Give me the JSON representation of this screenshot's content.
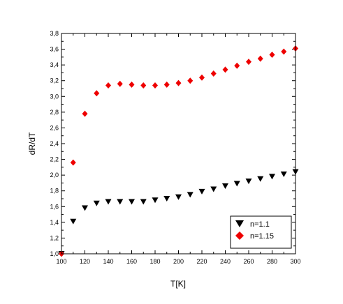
{
  "chart_data": {
    "type": "scatter",
    "xlabel": "T[K]",
    "ylabel": "dR/dT",
    "xlim": [
      100,
      300
    ],
    "ylim": [
      1.0,
      3.8
    ],
    "x_ticks": [
      100,
      120,
      140,
      160,
      180,
      200,
      220,
      240,
      260,
      280,
      300
    ],
    "y_ticks": [
      "1,0",
      "1,2",
      "1,4",
      "1,6",
      "1,8",
      "2,0",
      "2,2",
      "2,4",
      "2,6",
      "2,8",
      "3,0",
      "3,2",
      "3,4",
      "3,6",
      "3,8"
    ],
    "legend_position": "bottom-right",
    "series": [
      {
        "name": "n=1.1",
        "marker": "triangle-down",
        "color": "#000000",
        "points": [
          [
            100,
            1.0
          ],
          [
            110,
            1.41
          ],
          [
            120,
            1.58
          ],
          [
            130,
            1.64
          ],
          [
            140,
            1.66
          ],
          [
            150,
            1.66
          ],
          [
            160,
            1.66
          ],
          [
            170,
            1.66
          ],
          [
            180,
            1.68
          ],
          [
            190,
            1.7
          ],
          [
            200,
            1.72
          ],
          [
            210,
            1.75
          ],
          [
            220,
            1.79
          ],
          [
            230,
            1.82
          ],
          [
            240,
            1.86
          ],
          [
            250,
            1.89
          ],
          [
            260,
            1.92
          ],
          [
            270,
            1.95
          ],
          [
            280,
            1.98
          ],
          [
            290,
            2.01
          ],
          [
            300,
            2.04
          ]
        ]
      },
      {
        "name": "n=1.15",
        "marker": "diamond",
        "color": "#ee0000",
        "points": [
          [
            100,
            1.0
          ],
          [
            110,
            2.16
          ],
          [
            120,
            2.78
          ],
          [
            130,
            3.04
          ],
          [
            140,
            3.14
          ],
          [
            150,
            3.16
          ],
          [
            160,
            3.15
          ],
          [
            170,
            3.14
          ],
          [
            180,
            3.14
          ],
          [
            190,
            3.15
          ],
          [
            200,
            3.17
          ],
          [
            210,
            3.2
          ],
          [
            220,
            3.24
          ],
          [
            230,
            3.29
          ],
          [
            240,
            3.34
          ],
          [
            250,
            3.39
          ],
          [
            260,
            3.44
          ],
          [
            270,
            3.48
          ],
          [
            280,
            3.53
          ],
          [
            290,
            3.57
          ],
          [
            300,
            3.61
          ]
        ]
      }
    ]
  }
}
